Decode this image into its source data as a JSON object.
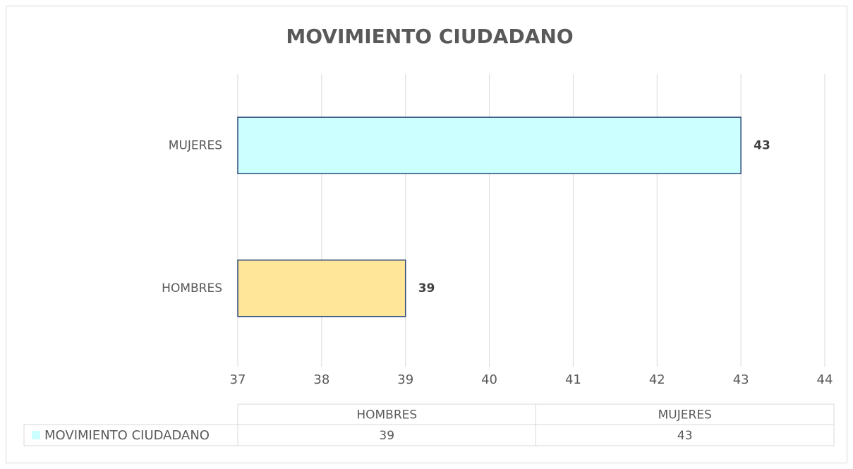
{
  "chart_data": {
    "type": "bar",
    "orientation": "horizontal",
    "title": "MOVIMIENTO CIUDADANO",
    "categories": [
      "HOMBRES",
      "MUJERES"
    ],
    "series": [
      {
        "name": "MOVIMIENTO CIUDADANO",
        "color": "#ccffff",
        "point_colors": [
          "#ffe699",
          "#ccffff"
        ],
        "values": [
          39,
          43
        ]
      }
    ],
    "xlim": [
      37,
      44
    ],
    "xticks": [
      37,
      38,
      39,
      40,
      41,
      42,
      43,
      44
    ],
    "grid": true,
    "data_table": true
  }
}
